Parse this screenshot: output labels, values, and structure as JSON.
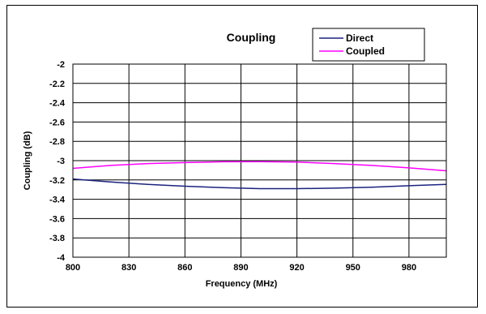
{
  "chart_data": {
    "type": "line",
    "title": "Coupling",
    "xlabel": "Frequency (MHz)",
    "ylabel": "Coupling (dB)",
    "xlim": [
      800,
      1000
    ],
    "ylim": [
      -4,
      -2
    ],
    "x_ticks": [
      800,
      830,
      860,
      890,
      920,
      950,
      980
    ],
    "x_tick_labels": [
      "800",
      "830",
      "860",
      "890",
      "920",
      "950",
      "980"
    ],
    "y_ticks": [
      -2,
      -2.2,
      -2.4,
      -2.6,
      -2.8,
      -3,
      -3.2,
      -3.4,
      -3.6,
      -3.8,
      -4
    ],
    "y_tick_labels": [
      "-2",
      "-2.2",
      "-2.4",
      "-2.6",
      "-2.8",
      "-3",
      "-3.2",
      "-3.4",
      "-3.6",
      "-3.8",
      "-4"
    ],
    "grid": true,
    "legend": "top-right",
    "series": [
      {
        "name": "Direct",
        "color": "#1a237e",
        "x": [
          800,
          820,
          840,
          860,
          880,
          900,
          920,
          940,
          960,
          980,
          1000
        ],
        "y": [
          -3.19,
          -3.22,
          -3.245,
          -3.265,
          -3.28,
          -3.29,
          -3.29,
          -3.285,
          -3.275,
          -3.26,
          -3.245
        ]
      },
      {
        "name": "Coupled",
        "color": "#ff00ff",
        "x": [
          800,
          820,
          840,
          860,
          880,
          900,
          920,
          940,
          960,
          980,
          1000
        ],
        "y": [
          -3.08,
          -3.05,
          -3.03,
          -3.02,
          -3.012,
          -3.01,
          -3.015,
          -3.03,
          -3.05,
          -3.075,
          -3.105
        ]
      }
    ]
  }
}
